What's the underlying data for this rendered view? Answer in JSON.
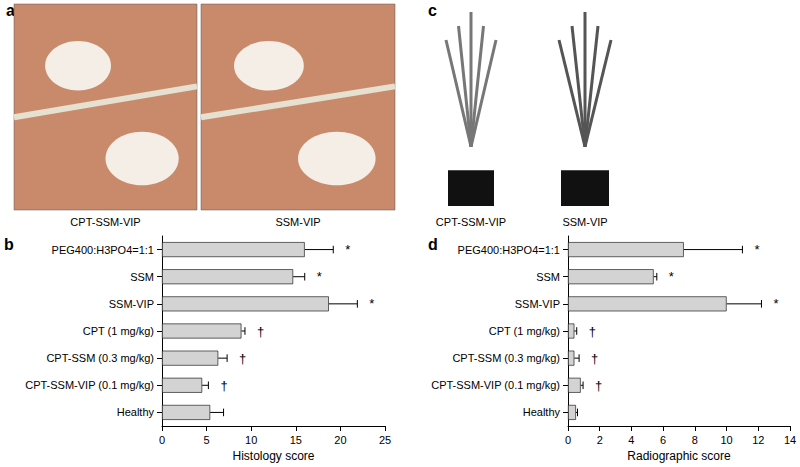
{
  "chart_data": [
    {
      "type": "bar",
      "title": "b",
      "orientation": "horizontal",
      "categories": [
        "PEG400:H3PO4=1:1",
        "SSM",
        "SSM-VIP",
        "CPT (1 mg/kg)",
        "CPT-SSM (0.3 mg/kg)",
        "CPT-SSM-VIP (0.1 mg/kg)",
        "Healthy"
      ],
      "values": [
        16.0,
        14.7,
        18.7,
        8.9,
        6.3,
        4.5,
        5.4
      ],
      "errors": [
        3.2,
        1.3,
        3.2,
        0.4,
        1.0,
        0.7,
        1.5
      ],
      "annotations": [
        "*",
        "*",
        "*",
        "†",
        "†",
        "†",
        null
      ],
      "xlabel": "Histology score",
      "xlim": [
        0,
        25
      ],
      "xticks": [
        0,
        5,
        10,
        15,
        20,
        25
      ],
      "color": "#d3d3d3"
    },
    {
      "type": "bar",
      "title": "d",
      "orientation": "horizontal",
      "categories": [
        "PEG400:H3PO4=1:1",
        "SSM",
        "SSM-VIP",
        "CPT (1 mg/kg)",
        "CPT-SSM (0.3 mg/kg)",
        "CPT-SSM-VIP (0.1 mg/kg)",
        "Healthy"
      ],
      "values": [
        7.3,
        5.4,
        10.0,
        0.4,
        0.4,
        0.8,
        0.5
      ],
      "errors": [
        3.7,
        0.2,
        2.2,
        0.15,
        0.3,
        0.15,
        0.1
      ],
      "annotations": [
        "*",
        "*",
        "*",
        "†",
        "†",
        "†",
        null
      ],
      "xlabel": "Radiographic score",
      "xlim": [
        0,
        14
      ],
      "xticks": [
        0,
        2,
        4,
        6,
        8,
        10,
        12,
        14
      ],
      "color": "#d3d3d3"
    }
  ],
  "images": [
    {
      "panel": "a",
      "captions": [
        "CPT-SSM-VIP",
        "SSM-VIP"
      ]
    },
    {
      "panel": "c",
      "captions": [
        "CPT-SSM-VIP",
        "SSM-VIP"
      ]
    }
  ]
}
